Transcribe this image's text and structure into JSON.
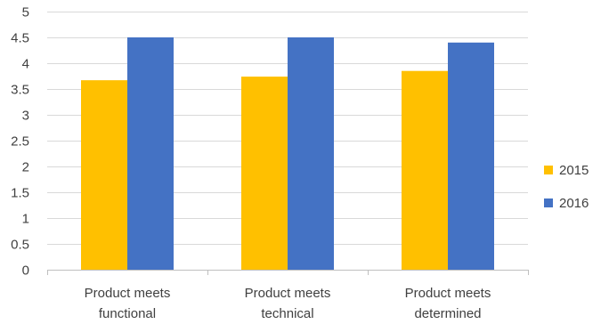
{
  "chart_data": {
    "type": "bar",
    "title": "",
    "xlabel": "",
    "ylabel": "",
    "ylim": [
      0,
      5
    ],
    "yticks": [
      "0",
      "0.5",
      "1",
      "1.5",
      "2",
      "2.5",
      "3",
      "3.5",
      "4",
      "4.5",
      "5"
    ],
    "grid": true,
    "legend_position": "right",
    "categories": [
      [
        "Product meets",
        "functional"
      ],
      [
        "Product meets",
        "technical"
      ],
      [
        "Product meets",
        "determined"
      ]
    ],
    "series": [
      {
        "name": "2015",
        "color": "#FFC000",
        "values": [
          3.67,
          3.74,
          3.85
        ]
      },
      {
        "name": "2016",
        "color": "#4472C4",
        "values": [
          4.5,
          4.5,
          4.4
        ]
      }
    ]
  }
}
